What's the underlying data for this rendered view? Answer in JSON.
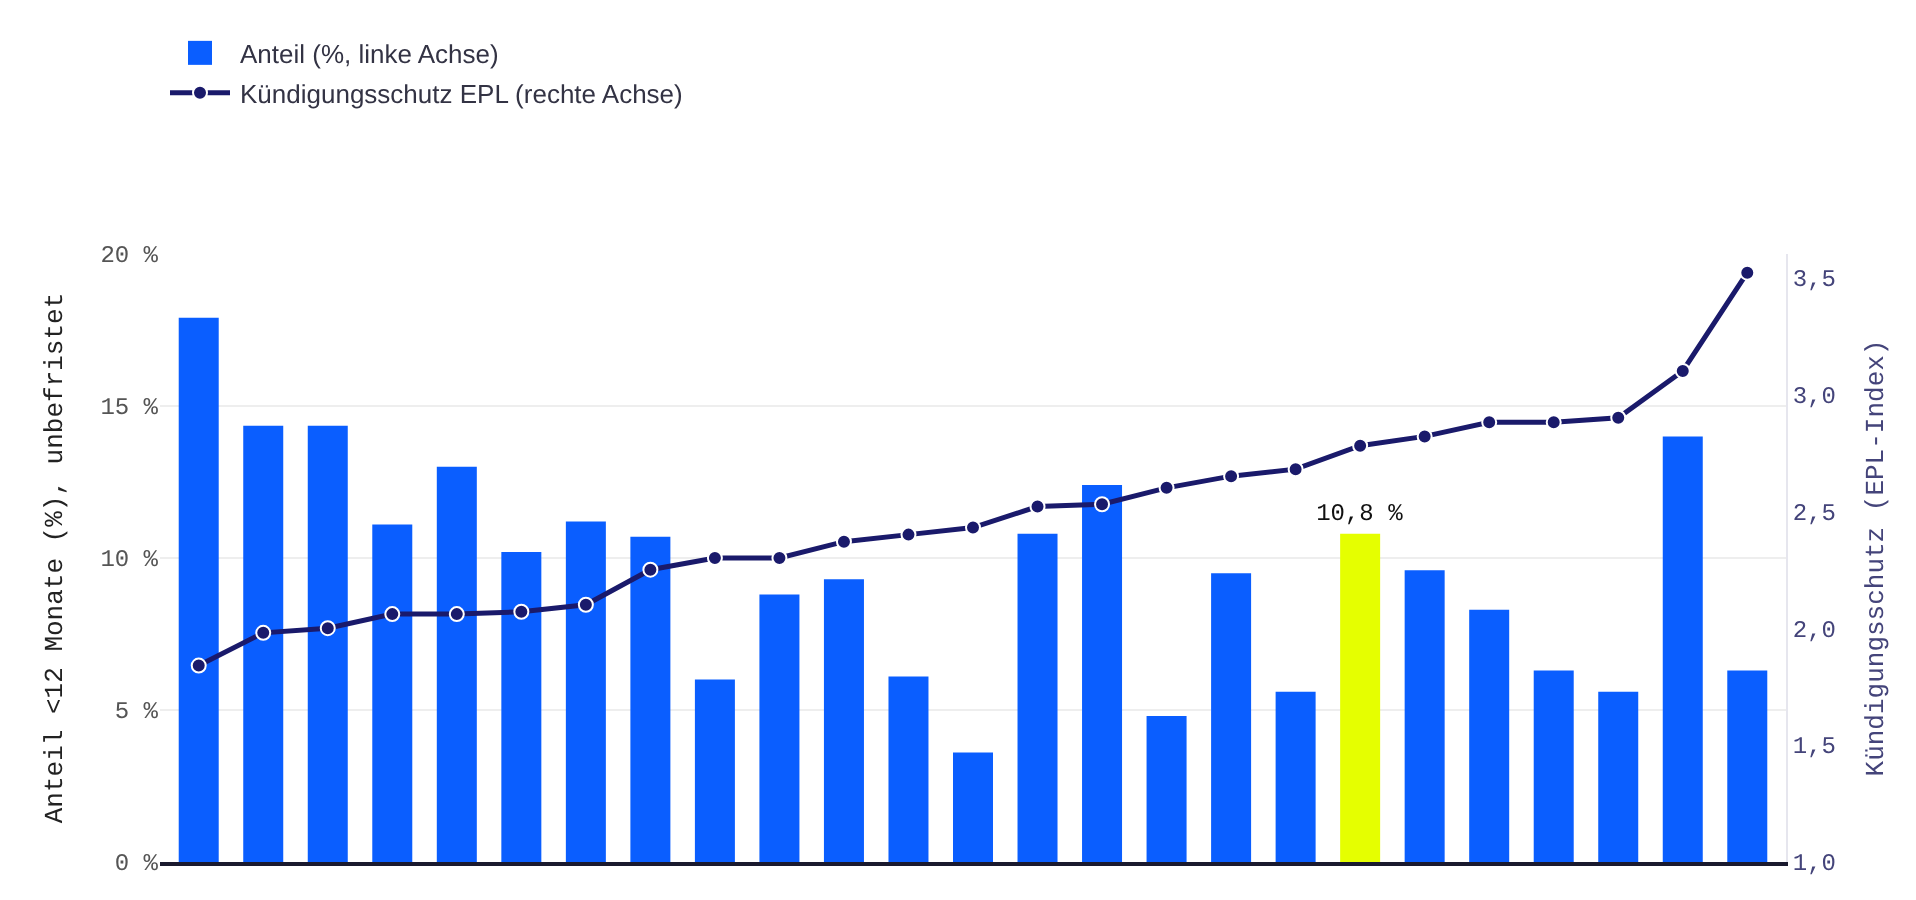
{
  "chart_data": {
    "type": "bar",
    "ylabel": "Anteil <12 Monate (%), unbefristet",
    "y2label": "Kündigungsschutz (EPL-Index)",
    "categories": [
      null,
      null,
      null,
      null,
      null,
      null,
      null,
      null,
      null,
      null,
      null,
      null,
      null,
      null,
      null,
      null,
      null,
      null,
      null,
      null,
      null,
      null,
      null,
      null,
      null
    ],
    "series": [
      {
        "name": "Anteil (%, linke Achse)",
        "colors": [
          "#0a5eff",
          "#0a5eff",
          "#0a5eff",
          "#0a5eff",
          "#0a5eff",
          "#0a5eff",
          "#0a5eff",
          "#0a5eff",
          "#0a5eff",
          "#0a5eff",
          "#0a5eff",
          "#0a5eff",
          "#0a5eff",
          "#0a5eff",
          "#0a5eff",
          "#0a5eff",
          "#0a5eff",
          "#0a5eff",
          "#e5ff00",
          "#0a5eff",
          "#0a5eff",
          "#0a5eff",
          "#0a5eff",
          "#0a5eff",
          "#0a5eff"
        ],
        "values": [
          17.9,
          14.35,
          14.35,
          11.1,
          13.0,
          10.2,
          11.2,
          10.7,
          6.0,
          8.8,
          9.3,
          6.1,
          3.6,
          10.8,
          12.4,
          4.8,
          9.5,
          5.6,
          10.8,
          9.6,
          8.3,
          6.3,
          5.6,
          14.0,
          6.3
        ],
        "value_labels": [
          null,
          null,
          null,
          null,
          null,
          null,
          null,
          null,
          null,
          null,
          null,
          null,
          null,
          null,
          null,
          null,
          null,
          null,
          "10,8 %",
          null,
          null,
          null,
          null,
          null,
          null
        ]
      },
      {
        "name": "Kündigungsschutz EPL (rechte Achse)",
        "type": "line",
        "axis": "y2",
        "color": "#1a1a6b",
        "marker": "circle",
        "line_style": "solid",
        "values": [
          1.84,
          1.98,
          2.0,
          2.06,
          2.06,
          2.07,
          2.1,
          2.25,
          2.3,
          2.3,
          2.37,
          2.4,
          2.43,
          2.52,
          2.53,
          2.6,
          2.65,
          2.68,
          2.78,
          2.82,
          2.88,
          2.88,
          2.9,
          3.1,
          3.52
        ]
      }
    ],
    "ylim": [
      0,
      20
    ],
    "yticks": [
      {
        "value": 0,
        "label": "0 %"
      },
      {
        "value": 5,
        "label": "5 %"
      },
      {
        "value": 10,
        "label": "10 %"
      },
      {
        "value": 15,
        "label": "15 %"
      },
      {
        "value": 20,
        "label": "20 %"
      }
    ],
    "y2lim": [
      1.0,
      3.6
    ],
    "y2ticks": [
      {
        "value": 1.0,
        "label": "1,0"
      },
      {
        "value": 1.5,
        "label": "1,5"
      },
      {
        "value": 2.0,
        "label": "2,0"
      },
      {
        "value": 2.5,
        "label": "2,5"
      },
      {
        "value": 3.0,
        "label": "3,0"
      },
      {
        "value": 3.5,
        "label": "3,5"
      }
    ],
    "grid": "y",
    "legend": "top left"
  }
}
